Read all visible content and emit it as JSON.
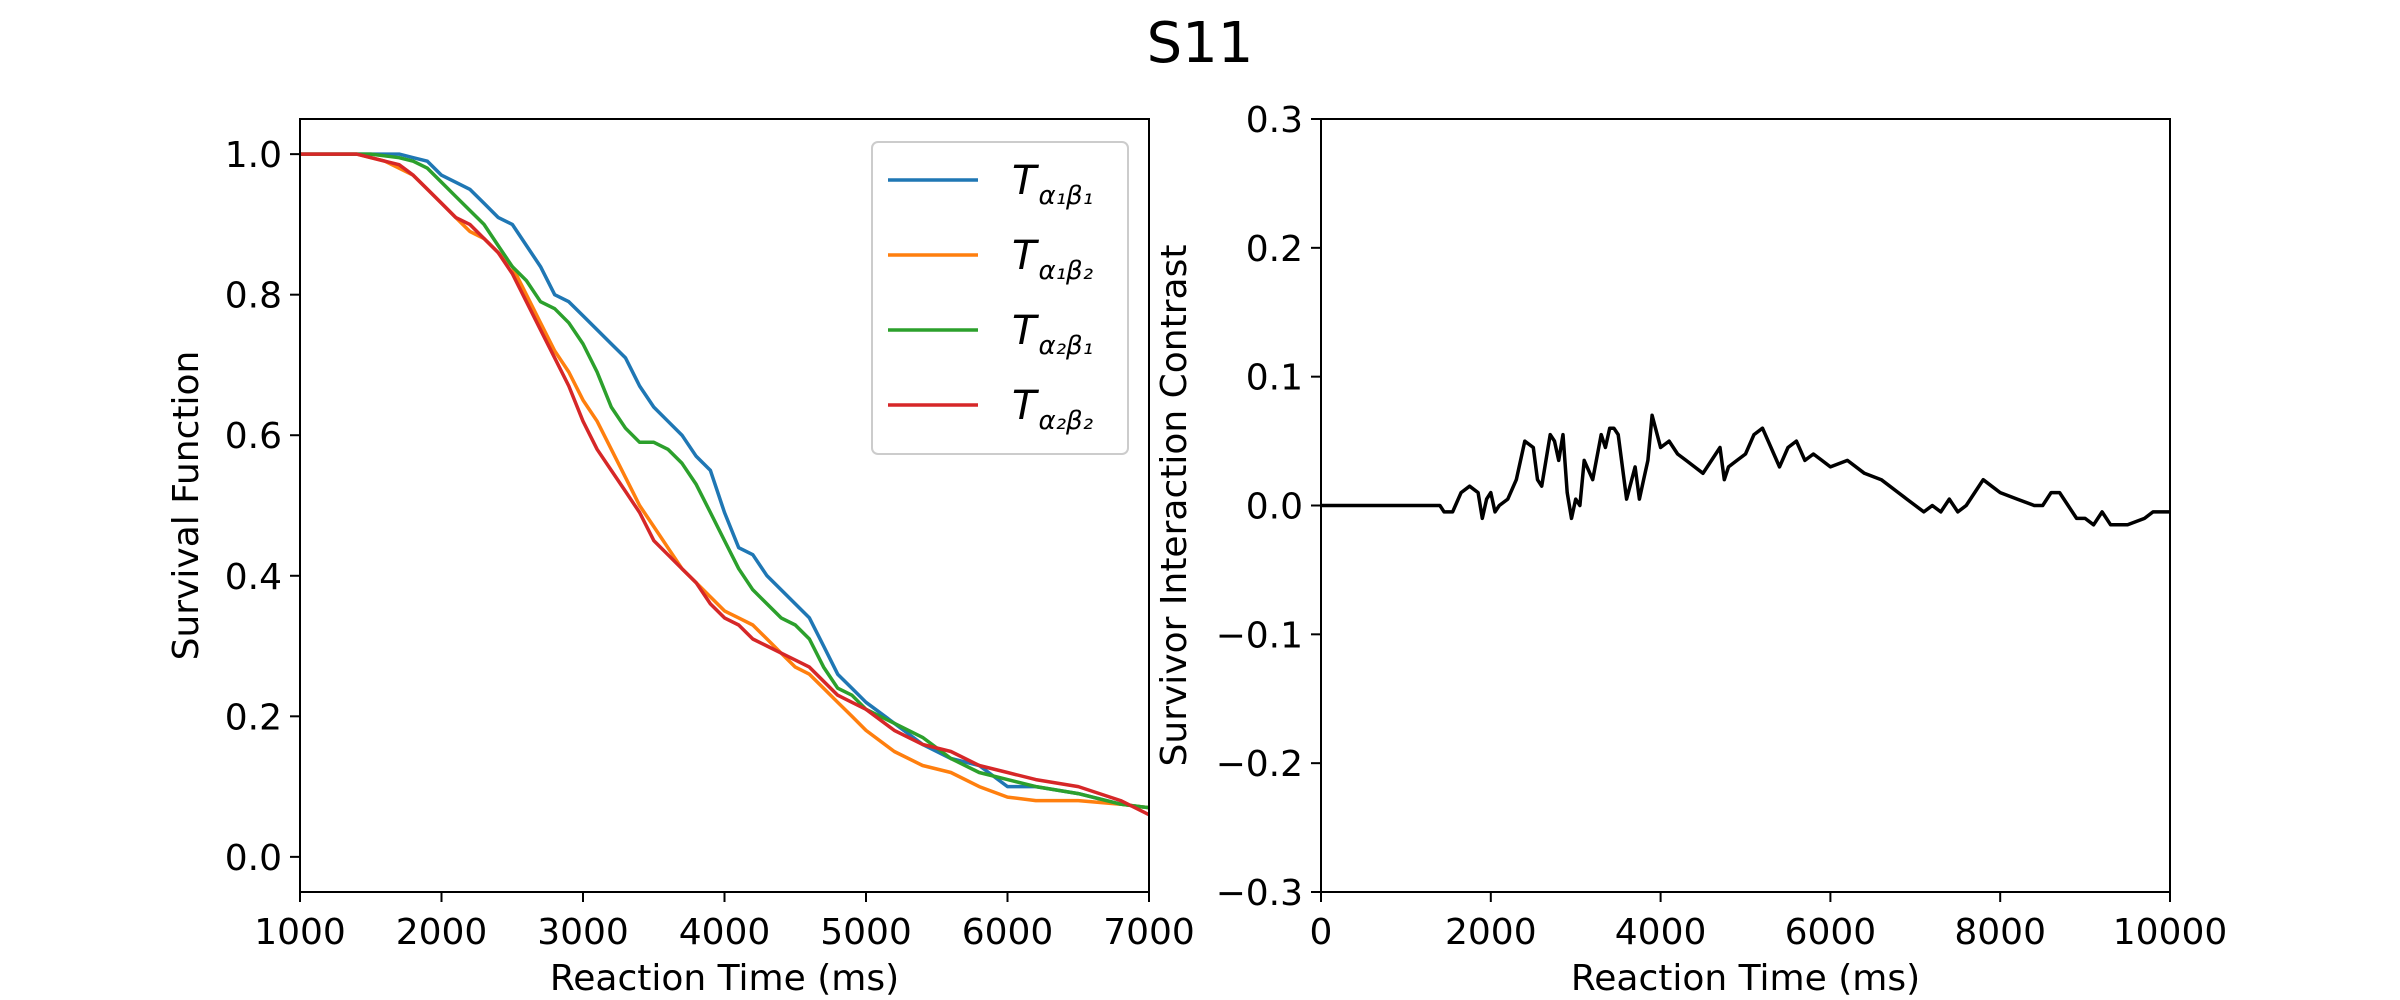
{
  "figure_title": "S11",
  "chart_data": [
    {
      "type": "line",
      "id": "survival",
      "title": "",
      "xlabel": "Reaction Time (ms)",
      "ylabel": "Survival Function",
      "xlim": [
        1000,
        7000
      ],
      "ylim": [
        -0.05,
        1.05
      ],
      "xticks": [
        1000,
        2000,
        3000,
        4000,
        5000,
        6000,
        7000
      ],
      "xtick_labels": [
        "1000",
        "2000",
        "3000",
        "4000",
        "5000",
        "6000",
        "7000"
      ],
      "yticks": [
        0.0,
        0.2,
        0.4,
        0.6,
        0.8,
        1.0
      ],
      "ytick_labels": [
        "0.0",
        "0.2",
        "0.4",
        "0.6",
        "0.8",
        "1.0"
      ],
      "legend_position": "top-right",
      "series": [
        {
          "name": "T_{α1β1}",
          "label_main": "T",
          "label_sub": "α₁β₁",
          "color": "#1f77b4",
          "x": [
            1000,
            1400,
            1700,
            1800,
            1900,
            2000,
            2100,
            2200,
            2300,
            2400,
            2500,
            2600,
            2700,
            2800,
            2900,
            3000,
            3100,
            3200,
            3300,
            3400,
            3500,
            3600,
            3700,
            3800,
            3900,
            4000,
            4100,
            4200,
            4300,
            4400,
            4500,
            4600,
            4700,
            4800,
            4900,
            5000,
            5200,
            5400,
            5600,
            5800,
            6000,
            6200,
            6500,
            6800,
            7000
          ],
          "y": [
            1.0,
            1.0,
            1.0,
            0.995,
            0.99,
            0.97,
            0.96,
            0.95,
            0.93,
            0.91,
            0.9,
            0.87,
            0.84,
            0.8,
            0.79,
            0.77,
            0.75,
            0.73,
            0.71,
            0.67,
            0.64,
            0.62,
            0.6,
            0.57,
            0.55,
            0.49,
            0.44,
            0.43,
            0.4,
            0.38,
            0.36,
            0.34,
            0.3,
            0.26,
            0.24,
            0.22,
            0.19,
            0.16,
            0.14,
            0.13,
            0.1,
            0.1,
            0.09,
            0.075,
            0.07
          ]
        },
        {
          "name": "T_{α1β2}",
          "label_main": "T",
          "label_sub": "α₁β₂",
          "color": "#ff7f0e",
          "x": [
            1000,
            1400,
            1600,
            1700,
            1800,
            1900,
            2000,
            2100,
            2200,
            2300,
            2400,
            2500,
            2600,
            2700,
            2800,
            2900,
            3000,
            3100,
            3200,
            3300,
            3400,
            3500,
            3600,
            3700,
            3800,
            3900,
            4000,
            4100,
            4200,
            4300,
            4400,
            4500,
            4600,
            4700,
            4800,
            4900,
            5000,
            5200,
            5400,
            5600,
            5800,
            6000,
            6200,
            6500,
            6800,
            7000
          ],
          "y": [
            1.0,
            1.0,
            0.99,
            0.98,
            0.97,
            0.95,
            0.93,
            0.91,
            0.89,
            0.88,
            0.86,
            0.84,
            0.8,
            0.76,
            0.72,
            0.69,
            0.65,
            0.62,
            0.58,
            0.54,
            0.5,
            0.47,
            0.44,
            0.41,
            0.39,
            0.37,
            0.35,
            0.34,
            0.33,
            0.31,
            0.29,
            0.27,
            0.26,
            0.24,
            0.22,
            0.2,
            0.18,
            0.15,
            0.13,
            0.12,
            0.1,
            0.085,
            0.08,
            0.08,
            0.075,
            0.07
          ]
        },
        {
          "name": "T_{α2β1}",
          "label_main": "T",
          "label_sub": "α₂β₁",
          "color": "#2ca02c",
          "x": [
            1000,
            1500,
            1700,
            1800,
            1900,
            2000,
            2100,
            2200,
            2300,
            2400,
            2500,
            2600,
            2700,
            2800,
            2900,
            3000,
            3100,
            3200,
            3300,
            3400,
            3500,
            3600,
            3700,
            3800,
            3900,
            4000,
            4100,
            4200,
            4300,
            4400,
            4500,
            4600,
            4700,
            4800,
            4900,
            5000,
            5200,
            5400,
            5600,
            5800,
            6000,
            6200,
            6500,
            6800,
            7000
          ],
          "y": [
            1.0,
            1.0,
            0.995,
            0.99,
            0.98,
            0.96,
            0.94,
            0.92,
            0.9,
            0.87,
            0.84,
            0.82,
            0.79,
            0.78,
            0.76,
            0.73,
            0.69,
            0.64,
            0.61,
            0.59,
            0.59,
            0.58,
            0.56,
            0.53,
            0.49,
            0.45,
            0.41,
            0.38,
            0.36,
            0.34,
            0.33,
            0.31,
            0.27,
            0.24,
            0.23,
            0.21,
            0.19,
            0.17,
            0.14,
            0.12,
            0.11,
            0.1,
            0.09,
            0.075,
            0.07
          ]
        },
        {
          "name": "T_{α2β2}",
          "label_main": "T",
          "label_sub": "α₂β₂",
          "color": "#d62728",
          "x": [
            1000,
            1400,
            1600,
            1700,
            1800,
            1900,
            2000,
            2100,
            2200,
            2300,
            2400,
            2500,
            2600,
            2700,
            2800,
            2900,
            3000,
            3100,
            3200,
            3300,
            3400,
            3500,
            3600,
            3700,
            3800,
            3900,
            4000,
            4100,
            4200,
            4300,
            4400,
            4500,
            4600,
            4700,
            4800,
            4900,
            5000,
            5200,
            5400,
            5600,
            5800,
            6000,
            6200,
            6500,
            6800,
            7000
          ],
          "y": [
            1.0,
            1.0,
            0.99,
            0.985,
            0.97,
            0.95,
            0.93,
            0.91,
            0.9,
            0.88,
            0.86,
            0.83,
            0.79,
            0.75,
            0.71,
            0.67,
            0.62,
            0.58,
            0.55,
            0.52,
            0.49,
            0.45,
            0.43,
            0.41,
            0.39,
            0.36,
            0.34,
            0.33,
            0.31,
            0.3,
            0.29,
            0.28,
            0.27,
            0.25,
            0.23,
            0.22,
            0.21,
            0.18,
            0.16,
            0.15,
            0.13,
            0.12,
            0.11,
            0.1,
            0.08,
            0.06
          ]
        }
      ]
    },
    {
      "type": "line",
      "id": "sic",
      "title": "",
      "xlabel": "Reaction Time (ms)",
      "ylabel": "Survivor Interaction Contrast",
      "xlim": [
        0,
        10000
      ],
      "ylim": [
        -0.3,
        0.3
      ],
      "xticks": [
        0,
        2000,
        4000,
        6000,
        8000,
        10000
      ],
      "xtick_labels": [
        "0",
        "2000",
        "4000",
        "6000",
        "8000",
        "10000"
      ],
      "yticks": [
        -0.3,
        -0.2,
        -0.1,
        0.0,
        0.1,
        0.2,
        0.3
      ],
      "ytick_labels": [
        "−0.3",
        "−0.2",
        "−0.1",
        "0.0",
        "0.1",
        "0.2",
        "0.3"
      ],
      "series": [
        {
          "name": "SIC",
          "color": "#000000",
          "x": [
            0,
            1400,
            1450,
            1550,
            1650,
            1750,
            1850,
            1900,
            1950,
            2000,
            2050,
            2100,
            2200,
            2300,
            2400,
            2500,
            2550,
            2600,
            2700,
            2750,
            2800,
            2850,
            2900,
            2950,
            3000,
            3050,
            3100,
            3200,
            3300,
            3350,
            3400,
            3450,
            3500,
            3600,
            3700,
            3750,
            3800,
            3850,
            3900,
            4000,
            4100,
            4200,
            4300,
            4400,
            4500,
            4600,
            4700,
            4750,
            4800,
            4900,
            5000,
            5100,
            5200,
            5300,
            5400,
            5500,
            5600,
            5700,
            5800,
            5900,
            6000,
            6200,
            6400,
            6600,
            6800,
            6900,
            7000,
            7100,
            7200,
            7300,
            7400,
            7500,
            7600,
            7700,
            7800,
            7900,
            8000,
            8200,
            8400,
            8500,
            8600,
            8700,
            8800,
            8900,
            9000,
            9100,
            9200,
            9300,
            9500,
            9700,
            9800,
            10000
          ],
          "y": [
            0.0,
            0.0,
            -0.005,
            -0.005,
            0.01,
            0.015,
            0.01,
            -0.01,
            0.005,
            0.01,
            -0.005,
            0.0,
            0.005,
            0.02,
            0.05,
            0.045,
            0.02,
            0.015,
            0.055,
            0.05,
            0.035,
            0.055,
            0.01,
            -0.01,
            0.005,
            0.0,
            0.035,
            0.02,
            0.055,
            0.045,
            0.06,
            0.06,
            0.055,
            0.005,
            0.03,
            0.005,
            0.02,
            0.035,
            0.07,
            0.045,
            0.05,
            0.04,
            0.035,
            0.03,
            0.025,
            0.035,
            0.045,
            0.02,
            0.03,
            0.035,
            0.04,
            0.055,
            0.06,
            0.045,
            0.03,
            0.045,
            0.05,
            0.035,
            0.04,
            0.035,
            0.03,
            0.035,
            0.025,
            0.02,
            0.01,
            0.005,
            0.0,
            -0.005,
            0.0,
            -0.005,
            0.005,
            -0.005,
            0.0,
            0.01,
            0.02,
            0.015,
            0.01,
            0.005,
            0.0,
            0.0,
            0.01,
            0.01,
            0.0,
            -0.01,
            -0.01,
            -0.015,
            -0.005,
            -0.015,
            -0.015,
            -0.01,
            -0.005,
            -0.005
          ]
        }
      ]
    }
  ]
}
